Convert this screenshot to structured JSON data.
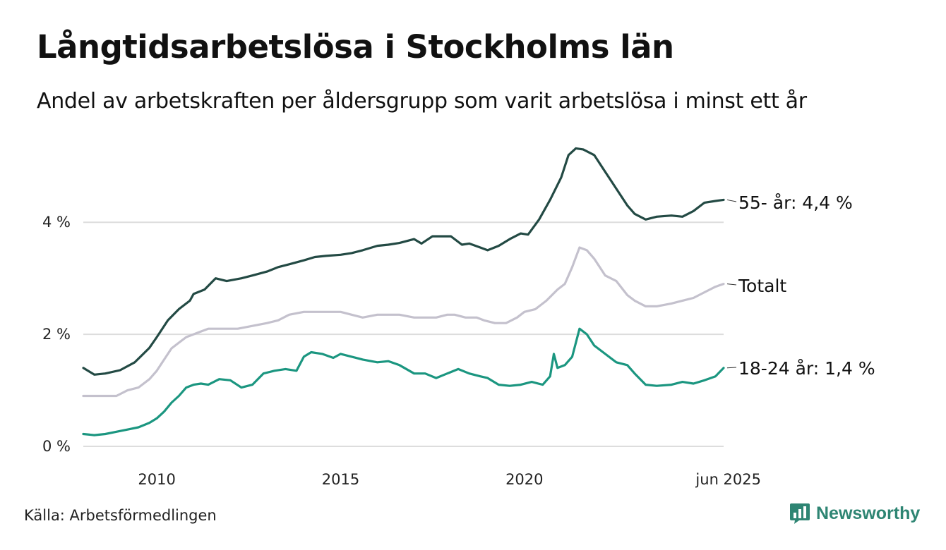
{
  "title": "Långtidsarbetslösa i Stockholms län",
  "subtitle": "Andel av arbetskraften per åldersgrupp som varit arbetslösa i minst ett år",
  "source": "Källa: Arbetsförmedlingen",
  "brand": "Newsworthy",
  "logo_icon": "bar-chart-bubble-icon",
  "colors": {
    "series_55": "#234a44",
    "series_total": "#c4c1cd",
    "series_18_24": "#1b9680",
    "grid": "#dddddd",
    "brand": "#2e8573"
  },
  "chart_data": {
    "type": "line",
    "title": "Långtidsarbetslösa i Stockholms län",
    "subtitle": "Andel av arbetskraften per åldersgrupp som varit arbetslösa i minst ett år",
    "xlim": [
      2008.0,
      2025.42
    ],
    "ylim": [
      0,
      5.4
    ],
    "y_ticks": [
      {
        "value": 0,
        "label": "0 %"
      },
      {
        "value": 2,
        "label": "2 %"
      },
      {
        "value": 4,
        "label": "4 %"
      }
    ],
    "x_ticks": [
      {
        "value": 2010,
        "label": "2010"
      },
      {
        "value": 2015,
        "label": "2015"
      },
      {
        "value": 2020,
        "label": "2020"
      },
      {
        "value": 2025.42,
        "label": "jun 2025"
      }
    ],
    "grid": true,
    "legend": "end-of-line labels",
    "series": [
      {
        "name": "55- år",
        "label": "55- år: 4,4 %",
        "x": [
          2008.0,
          2008.3,
          2008.6,
          2009.0,
          2009.4,
          2009.8,
          2010.0,
          2010.3,
          2010.6,
          2010.9,
          2011.0,
          2011.3,
          2011.6,
          2011.9,
          2012.3,
          2012.6,
          2013.0,
          2013.3,
          2013.6,
          2014.0,
          2014.3,
          2014.6,
          2015.0,
          2015.3,
          2015.6,
          2016.0,
          2016.3,
          2016.6,
          2017.0,
          2017.2,
          2017.5,
          2017.8,
          2018.0,
          2018.3,
          2018.5,
          2018.8,
          2019.0,
          2019.3,
          2019.6,
          2019.9,
          2020.1,
          2020.4,
          2020.7,
          2021.0,
          2021.2,
          2021.4,
          2021.6,
          2021.9,
          2022.2,
          2022.5,
          2022.8,
          2023.0,
          2023.3,
          2023.6,
          2024.0,
          2024.3,
          2024.6,
          2024.9,
          2025.2,
          2025.42
        ],
        "values": [
          1.4,
          1.28,
          1.3,
          1.36,
          1.5,
          1.76,
          1.95,
          2.25,
          2.45,
          2.6,
          2.72,
          2.8,
          3.0,
          2.95,
          3.0,
          3.05,
          3.12,
          3.2,
          3.25,
          3.32,
          3.38,
          3.4,
          3.42,
          3.45,
          3.5,
          3.58,
          3.6,
          3.63,
          3.7,
          3.62,
          3.75,
          3.75,
          3.75,
          3.6,
          3.62,
          3.55,
          3.5,
          3.58,
          3.7,
          3.8,
          3.78,
          4.05,
          4.4,
          4.8,
          5.2,
          5.32,
          5.3,
          5.2,
          4.9,
          4.6,
          4.3,
          4.15,
          4.05,
          4.1,
          4.12,
          4.1,
          4.2,
          4.35,
          4.38,
          4.4
        ]
      },
      {
        "name": "Totalt",
        "label": "Totalt",
        "x": [
          2008.0,
          2008.3,
          2008.6,
          2008.9,
          2009.2,
          2009.5,
          2009.8,
          2010.0,
          2010.2,
          2010.4,
          2010.6,
          2010.8,
          2011.0,
          2011.2,
          2011.4,
          2011.6,
          2011.8,
          2012.2,
          2012.6,
          2013.0,
          2013.3,
          2013.6,
          2014.0,
          2014.3,
          2014.6,
          2015.0,
          2015.3,
          2015.6,
          2016.0,
          2016.3,
          2016.6,
          2017.0,
          2017.3,
          2017.6,
          2017.9,
          2018.1,
          2018.4,
          2018.7,
          2018.9,
          2019.2,
          2019.5,
          2019.8,
          2020.0,
          2020.3,
          2020.6,
          2020.9,
          2021.1,
          2021.3,
          2021.5,
          2021.7,
          2021.9,
          2022.2,
          2022.5,
          2022.8,
          2023.0,
          2023.3,
          2023.6,
          2024.0,
          2024.3,
          2024.6,
          2024.9,
          2025.2,
          2025.42
        ],
        "values": [
          0.9,
          0.9,
          0.9,
          0.9,
          1.0,
          1.05,
          1.2,
          1.35,
          1.55,
          1.75,
          1.85,
          1.95,
          2.0,
          2.05,
          2.1,
          2.1,
          2.1,
          2.1,
          2.15,
          2.2,
          2.25,
          2.35,
          2.4,
          2.4,
          2.4,
          2.4,
          2.35,
          2.3,
          2.35,
          2.35,
          2.35,
          2.3,
          2.3,
          2.3,
          2.35,
          2.35,
          2.3,
          2.3,
          2.25,
          2.2,
          2.2,
          2.3,
          2.4,
          2.45,
          2.6,
          2.8,
          2.9,
          3.2,
          3.55,
          3.5,
          3.35,
          3.05,
          2.95,
          2.7,
          2.6,
          2.5,
          2.5,
          2.55,
          2.6,
          2.65,
          2.75,
          2.85,
          2.9
        ]
      },
      {
        "name": "18-24 år",
        "label": "18-24 år: 1,4 %",
        "x": [
          2008.0,
          2008.3,
          2008.6,
          2008.9,
          2009.2,
          2009.5,
          2009.8,
          2010.0,
          2010.2,
          2010.4,
          2010.6,
          2010.8,
          2011.0,
          2011.2,
          2011.4,
          2011.7,
          2012.0,
          2012.3,
          2012.6,
          2012.9,
          2013.2,
          2013.5,
          2013.8,
          2014.0,
          2014.2,
          2014.5,
          2014.8,
          2015.0,
          2015.3,
          2015.6,
          2016.0,
          2016.3,
          2016.6,
          2017.0,
          2017.3,
          2017.6,
          2017.9,
          2018.2,
          2018.5,
          2018.8,
          2019.0,
          2019.3,
          2019.6,
          2019.9,
          2020.2,
          2020.5,
          2020.7,
          2020.8,
          2020.9,
          2021.1,
          2021.3,
          2021.5,
          2021.7,
          2021.9,
          2022.2,
          2022.5,
          2022.8,
          2023.0,
          2023.3,
          2023.6,
          2024.0,
          2024.3,
          2024.6,
          2024.9,
          2025.2,
          2025.42
        ],
        "values": [
          0.22,
          0.2,
          0.22,
          0.26,
          0.3,
          0.34,
          0.42,
          0.5,
          0.62,
          0.78,
          0.9,
          1.05,
          1.1,
          1.12,
          1.1,
          1.2,
          1.18,
          1.05,
          1.1,
          1.3,
          1.35,
          1.38,
          1.35,
          1.6,
          1.68,
          1.65,
          1.58,
          1.65,
          1.6,
          1.55,
          1.5,
          1.52,
          1.45,
          1.3,
          1.3,
          1.22,
          1.3,
          1.38,
          1.3,
          1.25,
          1.22,
          1.1,
          1.08,
          1.1,
          1.15,
          1.1,
          1.25,
          1.65,
          1.4,
          1.45,
          1.6,
          2.1,
          2.0,
          1.8,
          1.65,
          1.5,
          1.45,
          1.3,
          1.1,
          1.08,
          1.1,
          1.15,
          1.12,
          1.18,
          1.25,
          1.4
        ]
      }
    ]
  }
}
